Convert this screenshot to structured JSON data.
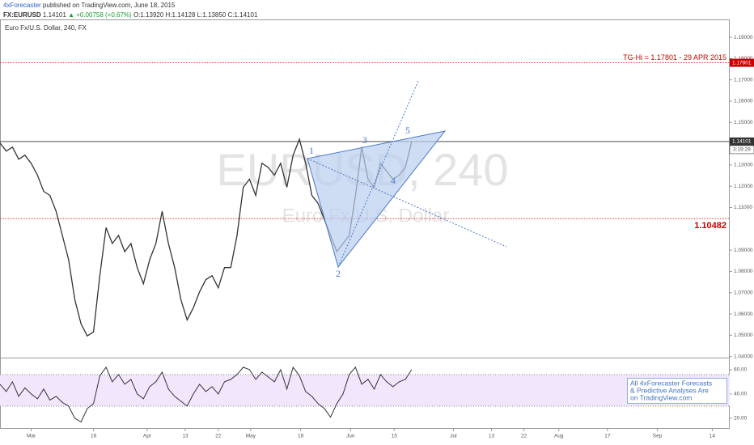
{
  "header": {
    "author": "4xForecaster",
    "published": "published on TradingView.com, June 18, 2015",
    "symbol": "FX:EURUSD",
    "last": "1.14101",
    "change": "▲ +0.00758 (+0.67%)",
    "ohlc": "O:1.13920 H:1.14128 L:1.13850 C:1.14101"
  },
  "chart_data": [
    {
      "type": "line",
      "subtitle": "Euro Fx/U.S. Dollar, 240, FX",
      "watermark": [
        "EURUSD, 240",
        "Euro Fx/U.S. Dollar"
      ],
      "color": "#333333",
      "x": [
        0,
        1,
        2,
        3,
        4,
        5,
        6,
        7,
        8,
        9,
        10,
        11,
        12,
        13,
        14,
        15,
        16,
        17,
        18,
        19,
        20,
        21,
        22,
        23,
        24,
        25,
        26,
        27,
        28,
        29,
        30,
        31,
        32,
        33,
        34,
        35,
        36,
        37,
        38,
        39,
        40,
        41,
        42,
        43,
        44,
        45,
        46,
        47,
        48,
        49,
        50,
        51,
        52,
        53,
        54,
        55,
        56,
        57,
        58,
        59,
        60,
        61,
        62,
        63,
        64,
        65,
        66
      ],
      "values": [
        1.1403,
        1.1365,
        1.1384,
        1.1327,
        1.1346,
        1.1308,
        1.1252,
        1.1176,
        1.1157,
        1.1082,
        1.0969,
        1.0855,
        1.0667,
        1.0553,
        1.0497,
        1.0516,
        1.078,
        1.1006,
        1.0931,
        1.0969,
        1.0893,
        1.0931,
        1.0818,
        1.0742,
        1.0855,
        1.0931,
        1.1082,
        1.0931,
        1.0818,
        1.0667,
        1.0572,
        1.0629,
        1.0704,
        1.0761,
        1.078,
        1.0723,
        1.0818,
        1.0818,
        1.0969,
        1.1195,
        1.1233,
        1.1157,
        1.1308,
        1.1289,
        1.1252,
        1.1308,
        1.1195,
        1.1346,
        1.1421,
        1.1308,
        1.1157,
        1.1119,
        1.1044,
        1.0969,
        1.0893,
        1.0931,
        1.0969,
        1.1157,
        1.1384,
        1.1233,
        1.1195,
        1.1308,
        1.127,
        1.1233,
        1.1252,
        1.1289,
        1.141
      ],
      "xlim": [
        0,
        117
      ],
      "ylim": [
        1.0395,
        1.198
      ],
      "yticks": [
        {
          "value": 1.19,
          "label": "1.19000"
        },
        {
          "value": 1.18,
          "label": "1.18000"
        },
        {
          "value": 1.17,
          "label": "1.17000"
        },
        {
          "value": 1.16,
          "label": "1.16000"
        },
        {
          "value": 1.15,
          "label": "1.15000"
        },
        {
          "value": 1.13,
          "label": "1.13000"
        },
        {
          "value": 1.12,
          "label": "1.12000"
        },
        {
          "value": 1.11,
          "label": "1.11000"
        },
        {
          "value": 1.09,
          "label": "1.09000"
        },
        {
          "value": 1.08,
          "label": "1.08000"
        },
        {
          "value": 1.07,
          "label": "1.07000"
        },
        {
          "value": 1.06,
          "label": "1.06000"
        },
        {
          "value": 1.05,
          "label": "1.05000"
        },
        {
          "value": 1.04,
          "label": "1.04000"
        }
      ],
      "hlines": [
        {
          "value": 1.17801,
          "label": "TG-Hi = 1.17801 - 29 APR 2015",
          "tag": "1.17801",
          "color": "#cc0000"
        },
        {
          "value": 1.10482,
          "label": "1.10482",
          "color": "#cc0000"
        },
        {
          "value": 1.14101,
          "tag": "1.14101",
          "color": "#333333"
        }
      ],
      "countdown": "3:19:29",
      "wave_labels": [
        "1",
        "2",
        "3",
        "4",
        "5"
      ]
    },
    {
      "type": "line",
      "color": "#333333",
      "x": [
        0,
        1,
        2,
        3,
        4,
        5,
        6,
        7,
        8,
        9,
        10,
        11,
        12,
        13,
        14,
        15,
        16,
        17,
        18,
        19,
        20,
        21,
        22,
        23,
        24,
        25,
        26,
        27,
        28,
        29,
        30,
        31,
        32,
        33,
        34,
        35,
        36,
        37,
        38,
        39,
        40,
        41,
        42,
        43,
        44,
        45,
        46,
        47,
        48,
        49,
        50,
        51,
        52,
        53,
        54,
        55,
        56,
        57,
        58,
        59,
        60,
        61,
        62,
        63,
        64,
        65,
        66
      ],
      "values": [
        48,
        42,
        50,
        38,
        45,
        40,
        36,
        44,
        35,
        38,
        33,
        30,
        20,
        17,
        28,
        32,
        55,
        62,
        50,
        56,
        48,
        52,
        40,
        36,
        46,
        50,
        58,
        44,
        38,
        34,
        30,
        40,
        48,
        42,
        46,
        40,
        50,
        52,
        56,
        62,
        60,
        52,
        58,
        54,
        50,
        60,
        44,
        62,
        55,
        42,
        38,
        32,
        28,
        21,
        32,
        40,
        56,
        62,
        48,
        52,
        44,
        56,
        50,
        46,
        50,
        52,
        60
      ],
      "xlim": [
        0,
        117
      ],
      "ylim": [
        11.3,
        69.3
      ],
      "band": [
        30,
        56
      ],
      "band_color": "#f1e6fb",
      "yticks": [
        {
          "value": 60,
          "label": "60.00"
        },
        {
          "value": 40,
          "label": "40.00"
        },
        {
          "value": 20,
          "label": "20.00"
        }
      ],
      "xticks": [
        {
          "value": 5,
          "label": "Mar"
        },
        {
          "value": 15,
          "label": "16"
        },
        {
          "value": 23.6,
          "label": "Apr"
        },
        {
          "value": 29.7,
          "label": "13"
        },
        {
          "value": 35,
          "label": "22"
        },
        {
          "value": 40.2,
          "label": "May"
        },
        {
          "value": 48.2,
          "label": "18"
        },
        {
          "value": 56.2,
          "label": "Jun"
        },
        {
          "value": 63.2,
          "label": "15"
        },
        {
          "value": 72.7,
          "label": "Jul"
        },
        {
          "value": 78.8,
          "label": "13"
        },
        {
          "value": 84,
          "label": "22"
        },
        {
          "value": 89.6,
          "label": "Aug"
        },
        {
          "value": 97.4,
          "label": "17"
        },
        {
          "value": 105.4,
          "label": "Sep"
        },
        {
          "value": 114.2,
          "label": "14"
        }
      ],
      "note": [
        "All 4xForecaster Forecasts",
        "& Predictive Analyses Are",
        "on TradingView.com"
      ]
    }
  ]
}
